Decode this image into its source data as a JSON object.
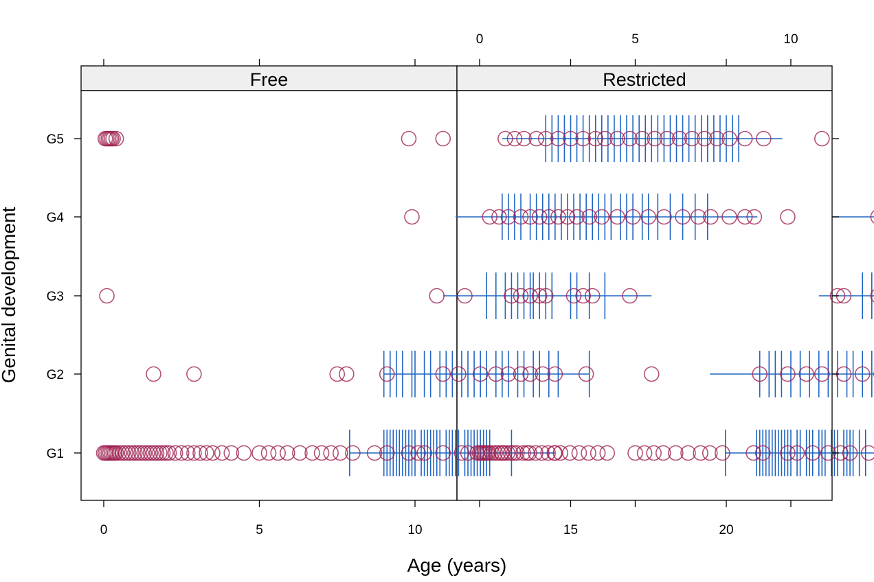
{
  "colors": {
    "points": "#9e1f4f",
    "rugs": "#1f65c2",
    "strip_bg": "#efefef",
    "frame": "#000000"
  },
  "chart_data": {
    "type": "scatter",
    "title": "",
    "xlabel": "Age (years)",
    "ylabel": "Genital development",
    "xlim": [
      -1.5,
      23
    ],
    "x_ticks": [
      "0",
      "5",
      "10",
      "15",
      "20"
    ],
    "y_categories": [
      "G1",
      "G2",
      "G3",
      "G4",
      "G5"
    ],
    "panels": [
      {
        "name": "Free",
        "points": {
          "G1": [
            0,
            0.05,
            0.1,
            0.15,
            0.2,
            0.25,
            0.3,
            0.35,
            0.4,
            0.5,
            0.6,
            0.7,
            0.8,
            0.9,
            1.0,
            1.1,
            1.2,
            1.3,
            1.4,
            1.5,
            1.6,
            1.7,
            1.8,
            1.9,
            2.0,
            2.1,
            2.3,
            2.5,
            2.7,
            2.9,
            3.1,
            3.3,
            3.5,
            3.8,
            4.1,
            4.5,
            5.0,
            5.3,
            5.6,
            5.9,
            6.3,
            6.7,
            7.0,
            7.3,
            7.6,
            8.0,
            8.7,
            9.1,
            9.8,
            10.1,
            10.3,
            10.9,
            11.5,
            11.7,
            12.0,
            12.8,
            13.6,
            14.5
          ],
          "G2": [
            1.6,
            2.9,
            7.5,
            7.8,
            9.1,
            10.9,
            11.4,
            12.1,
            12.6,
            13.0,
            13.4,
            13.7,
            14.1,
            14.5,
            15.5,
            17.6
          ],
          "G3": [
            0.1,
            10.7,
            11.6,
            13.1,
            13.4,
            13.7,
            14.0,
            14.2,
            15.1,
            15.4,
            15.7,
            16.9
          ],
          "G4": [
            9.9,
            12.4,
            12.7,
            13.0,
            13.4,
            13.7,
            14.0,
            14.3,
            14.6,
            14.9,
            15.2,
            15.6,
            16.0,
            16.5,
            17.0,
            17.5,
            18.0,
            18.6,
            19.1,
            19.5,
            20.1,
            20.6,
            20.9
          ],
          "G5": [
            0.05,
            0.1,
            0.15,
            0.2,
            0.25,
            0.3,
            0.4,
            9.8,
            10.9,
            12.9,
            13.2,
            13.5,
            13.9,
            14.2,
            14.6,
            15.0,
            15.4,
            15.8,
            16.1,
            16.5,
            16.9,
            17.3,
            17.7,
            18.1,
            18.5,
            18.9,
            19.3,
            19.7,
            20.1,
            20.6,
            21.2
          ]
        },
        "rugs": {
          "G1": [
            7.9,
            9.0,
            9.1,
            9.2,
            9.3,
            9.4,
            9.5,
            9.6,
            9.7,
            9.8,
            9.9,
            10.0,
            10.2,
            10.3,
            10.4,
            10.5,
            10.6,
            10.7,
            10.8,
            11.0,
            11.1,
            11.2,
            11.3,
            11.4,
            11.6,
            11.7,
            11.8,
            11.9,
            12.0,
            12.1,
            12.2,
            12.3,
            12.4,
            13.1
          ],
          "G2": [
            9.0,
            9.2,
            9.4,
            9.6,
            9.9,
            10.0,
            10.3,
            10.5,
            10.8,
            11.0,
            11.2,
            11.5,
            11.7,
            11.9,
            12.1,
            12.3,
            12.6,
            12.8,
            13.0,
            13.3,
            13.5,
            13.8,
            14.0,
            14.3,
            14.6,
            15.6
          ],
          "G3": [
            12.3,
            12.6,
            12.9,
            13.1,
            13.3,
            13.5,
            13.7,
            13.8,
            14.0,
            14.2,
            14.4,
            15.0,
            15.2,
            15.6,
            16.1
          ],
          "G4": [
            12.8,
            13.0,
            13.2,
            13.4,
            13.7,
            13.9,
            14.1,
            14.3,
            14.5,
            14.7,
            14.9,
            15.1,
            15.3,
            15.5,
            15.7,
            15.9,
            16.1,
            16.3,
            16.6,
            16.8,
            17.0,
            17.3,
            17.5,
            17.8,
            18.2,
            18.6,
            19.0,
            19.4
          ],
          "G5": [
            14.2,
            14.4,
            14.6,
            14.8,
            15.0,
            15.2,
            15.4,
            15.6,
            15.8,
            16.0,
            16.2,
            16.4,
            16.6,
            16.8,
            17.0,
            17.2,
            17.4,
            17.6,
            17.8,
            18.0,
            18.2,
            18.4,
            18.6,
            18.8,
            19.0,
            19.2,
            19.4,
            19.6,
            19.8,
            20.0,
            20.2,
            20.4
          ]
        },
        "lines": {
          "G1": [
            7.9,
            14.5
          ],
          "G2": [
            9.0,
            15.6
          ],
          "G3": [
            10.9,
            17.6
          ],
          "G4": [
            11.3,
            21.0
          ],
          "G5": [
            12.8,
            21.8
          ]
        }
      },
      {
        "name": "Restricted",
        "points": {
          "G1": [
            0,
            0.05,
            0.1,
            0.15,
            0.2,
            0.25,
            0.3,
            0.4,
            0.5,
            0.6,
            0.7,
            0.8,
            0.9,
            1.0,
            1.1,
            1.2,
            1.4,
            1.6,
            1.8,
            2.0,
            2.2,
            2.4,
            2.6,
            2.9,
            3.2,
            3.5,
            3.8,
            4.1,
            5.0,
            5.3,
            5.6,
            5.9,
            6.3,
            6.7,
            7.1,
            7.4,
            7.8,
            8.8,
            9.1,
            9.9,
            10.2,
            10.7,
            11.2,
            11.6,
            11.9,
            12.5,
            14.3,
            14.6
          ],
          "G2": [
            9.0,
            9.9,
            10.5,
            11.0,
            11.7,
            12.3,
            12.9,
            13.3,
            13.6,
            13.9,
            14.2,
            15.4
          ],
          "G3": [
            11.5,
            11.7,
            12.8,
            13.2,
            13.5,
            13.8,
            14.1,
            14.4,
            15.0,
            15.6,
            16.8,
            17.5
          ],
          "G4": [
            9.9,
            12.8,
            13.0,
            13.5,
            14.0,
            14.4,
            14.8,
            15.1,
            15.5,
            15.9,
            16.4,
            16.9,
            17.5,
            18.1,
            18.7,
            19.3,
            19.9,
            20.4,
            20.8
          ],
          "G5": [
            11.0,
            13.0,
            13.4,
            13.9,
            14.3,
            14.8,
            15.2,
            15.6,
            16.0,
            16.5,
            16.9,
            17.3,
            17.8,
            18.2,
            18.6,
            19.0,
            19.5,
            19.9,
            20.3,
            20.8,
            21.3
          ]
        },
        "rugs": {
          "G1": [
            7.9,
            8.9,
            9.0,
            9.1,
            9.2,
            9.3,
            9.4,
            9.5,
            9.6,
            9.7,
            9.8,
            9.9,
            10.0,
            10.2,
            10.3,
            10.5,
            10.6,
            10.7,
            10.9,
            11.0,
            11.1,
            11.3,
            11.4,
            11.5,
            11.7,
            11.8,
            11.9,
            12.0,
            12.2,
            12.4,
            13.1
          ],
          "G2": [
            9.0,
            9.3,
            9.5,
            9.7,
            10.0,
            10.3,
            10.6,
            10.9,
            11.2,
            11.5,
            11.8,
            12.0,
            12.3,
            12.6,
            12.9,
            13.2,
            13.5,
            13.8,
            14.0,
            14.3,
            14.6,
            15.6
          ],
          "G3": [
            12.3,
            12.6,
            12.9,
            13.2,
            13.4,
            13.6,
            13.8,
            14.0,
            14.2,
            14.5,
            15.0,
            15.3,
            15.7,
            16.1
          ],
          "G4": [
            12.9,
            13.1,
            13.4,
            13.6,
            13.9,
            14.1,
            14.3,
            14.5,
            14.7,
            14.9,
            15.1,
            15.3,
            15.5,
            15.7,
            16.0,
            16.3,
            16.6,
            16.9,
            17.2,
            17.5,
            17.9,
            18.3,
            18.7,
            19.1,
            19.5
          ],
          "G5": [
            14.2,
            14.4,
            14.6,
            14.8,
            15.0,
            15.2,
            15.4,
            15.6,
            15.8,
            16.0,
            16.2,
            16.4,
            16.6,
            16.8,
            17.0,
            17.2,
            17.4,
            17.6,
            17.8,
            18.0,
            18.2,
            18.4,
            18.6,
            18.8,
            19.0,
            19.2,
            19.4,
            19.6,
            19.8,
            20.0,
            20.2,
            20.4
          ]
        },
        "lines": {
          "G1": [
            7.9,
            14.6
          ],
          "G2": [
            7.4,
            17.1
          ],
          "G3": [
            10.9,
            17.5
          ],
          "G4": [
            11.3,
            21.0
          ],
          "G5": [
            12.8,
            21.8
          ]
        }
      }
    ]
  }
}
